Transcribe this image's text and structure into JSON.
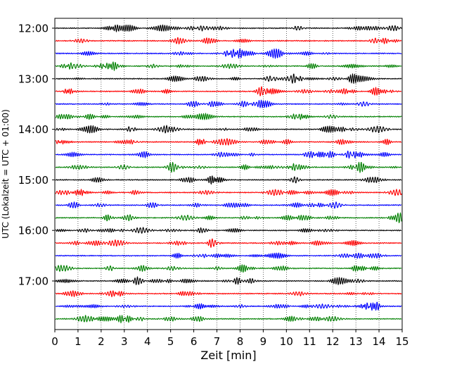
{
  "chart_data": {
    "type": "line",
    "title": "",
    "xlabel": "Zeit  [min]",
    "ylabel": "UTC (Lokalzeit = UTC + 01:00)",
    "xlim": [
      0,
      15
    ],
    "x_ticks": [
      0,
      1,
      2,
      3,
      4,
      5,
      6,
      7,
      8,
      9,
      10,
      11,
      12,
      13,
      14,
      15
    ],
    "x_tick_labels": [
      "0",
      "1",
      "2",
      "3",
      "4",
      "5",
      "6",
      "7",
      "8",
      "9",
      "10",
      "11",
      "12",
      "13",
      "14",
      "15"
    ],
    "y_tick_labels": [
      "12:00",
      "13:00",
      "14:00",
      "15:00",
      "16:00",
      "17:00"
    ],
    "y_tick_rows": [
      0,
      4,
      8,
      12,
      16,
      20
    ],
    "row_count": 24,
    "row_interval_minutes": 15,
    "start_time_utc": "12:00",
    "end_time_utc": "17:45",
    "vertical_grid": "dotted at each minute",
    "row_colors": [
      "#000000",
      "#ff0000",
      "#0000ff",
      "#008000"
    ],
    "legend": "none"
  }
}
